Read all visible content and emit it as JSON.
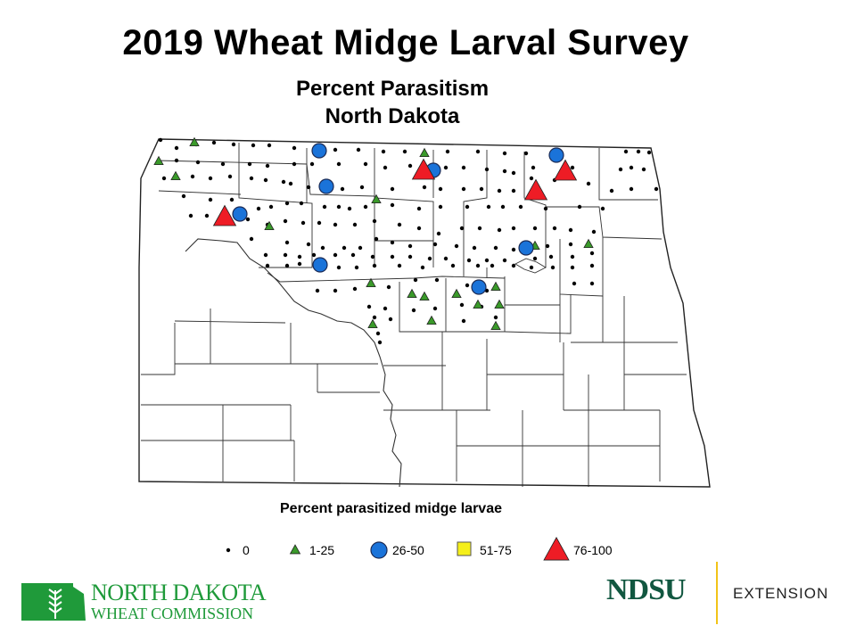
{
  "title": "2019 Wheat Midge Larval Survey",
  "subtitle_line1": "Percent Parasitism",
  "subtitle_line2": "North Dakota",
  "legend": {
    "title": "Percent parasitized midge larvae",
    "classes": [
      {
        "label": "0",
        "symbol": "dot",
        "color": "#000000"
      },
      {
        "label": "1-25",
        "symbol": "small-triangle",
        "color": "#3a9a2a"
      },
      {
        "label": "26-50",
        "symbol": "circle",
        "color": "#1a73d9"
      },
      {
        "label": "51-75",
        "symbol": "square",
        "color": "#f5ef1a"
      },
      {
        "label": "76-100",
        "symbol": "large-triangle",
        "color": "#ee1c25"
      }
    ]
  },
  "logos": {
    "ndwc_line1": "NORTH DAKOTA",
    "ndwc_line2": "WHEAT COMMISSION",
    "ndsu": "NDSU",
    "extension": "EXTENSION",
    "ndwc_color": "#1f9a3a",
    "ndsu_color": "#115740",
    "divider_color": "#f2c318"
  }
}
